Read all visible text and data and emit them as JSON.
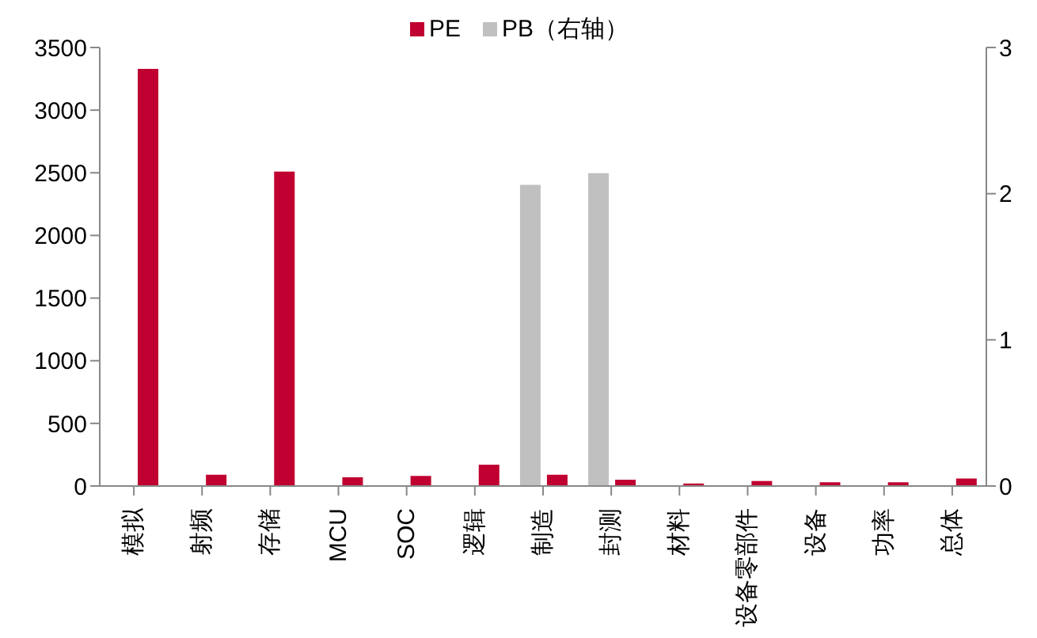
{
  "chart_data": {
    "type": "bar",
    "categories": [
      "模拟",
      "射频",
      "存储",
      "MCU",
      "SOC",
      "逻辑",
      "制造",
      "封测",
      "材料",
      "设备零部件",
      "设备",
      "功率",
      "总体"
    ],
    "series": [
      {
        "name": "PE",
        "color": "#c00030",
        "values": [
          3330,
          90,
          2510,
          70,
          80,
          170,
          90,
          50,
          20,
          40,
          30,
          30,
          60
        ]
      },
      {
        "name": "PB（右轴）",
        "color": "#c0c0c0",
        "axis": "y2",
        "values": [
          null,
          null,
          null,
          null,
          null,
          null,
          2.06,
          2.14,
          null,
          null,
          null,
          null,
          null
        ]
      }
    ],
    "ylim": [
      0,
      3500
    ],
    "yticks": [
      0,
      500,
      1000,
      1500,
      2000,
      2500,
      3000,
      3500
    ],
    "y2lim": [
      0,
      3
    ],
    "y2ticks": [
      0,
      1,
      2,
      3
    ],
    "legend": "top"
  }
}
